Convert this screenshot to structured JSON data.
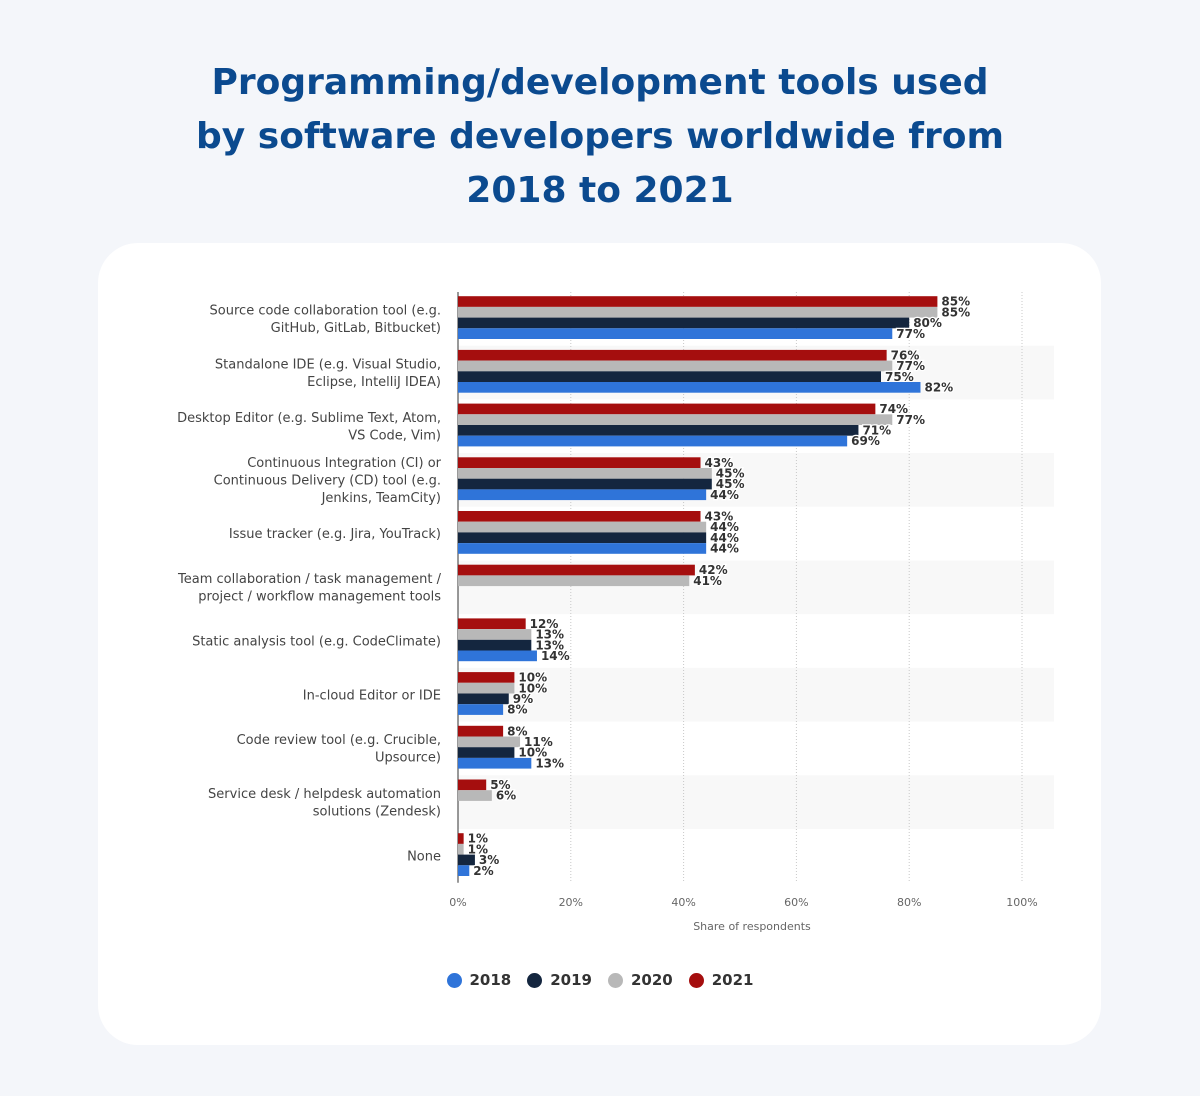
{
  "title": {
    "line1": "Programming/development tools used",
    "line2": "by software developers worldwide from",
    "line3": "2018 to 2021"
  },
  "chart_data": {
    "type": "bar",
    "orientation": "horizontal",
    "title": "Programming/development tools used by software developers worldwide from 2018 to 2021",
    "xlabel": "Share of respondents",
    "ylabel": "",
    "xlim": [
      0,
      100
    ],
    "x_ticks": [
      "0%",
      "20%",
      "40%",
      "60%",
      "80%",
      "100%"
    ],
    "grid": "vertical dotted",
    "legend_position": "bottom",
    "categories": [
      [
        "Source code collaboration tool (e.g.",
        "GitHub, GitLab, Bitbucket)"
      ],
      [
        "Standalone IDE (e.g. Visual Studio,",
        "Eclipse, IntelliJ IDEA)"
      ],
      [
        "Desktop Editor (e.g. Sublime Text, Atom,",
        "VS Code, Vim)"
      ],
      [
        "Continuous Integration (CI) or",
        "Continuous Delivery (CD) tool (e.g.",
        "Jenkins, TeamCity)"
      ],
      [
        "Issue tracker (e.g. Jira, YouTrack)"
      ],
      [
        "Team collaboration / task management /",
        "project / workflow management tools"
      ],
      [
        "Static analysis tool (e.g. CodeClimate)"
      ],
      [
        "In-cloud Editor or IDE"
      ],
      [
        "Code review tool (e.g. Crucible,",
        "Upsource)"
      ],
      [
        "Service desk / helpdesk automation",
        "solutions (Zendesk)"
      ],
      [
        "None"
      ]
    ],
    "series": [
      {
        "name": "2021",
        "color": "#a50e0e",
        "values": [
          85,
          76,
          74,
          43,
          43,
          42,
          12,
          10,
          8,
          5,
          1
        ]
      },
      {
        "name": "2020",
        "color": "#b8b8b8",
        "values": [
          85,
          77,
          77,
          45,
          44,
          41,
          13,
          10,
          11,
          6,
          1
        ]
      },
      {
        "name": "2019",
        "color": "#14263f",
        "values": [
          80,
          75,
          71,
          45,
          44,
          null,
          13,
          9,
          10,
          null,
          3
        ]
      },
      {
        "name": "2018",
        "color": "#2f74d9",
        "values": [
          77,
          82,
          69,
          44,
          44,
          null,
          14,
          8,
          13,
          null,
          2
        ]
      }
    ],
    "legend": [
      "2018",
      "2019",
      "2020",
      "2021"
    ]
  }
}
